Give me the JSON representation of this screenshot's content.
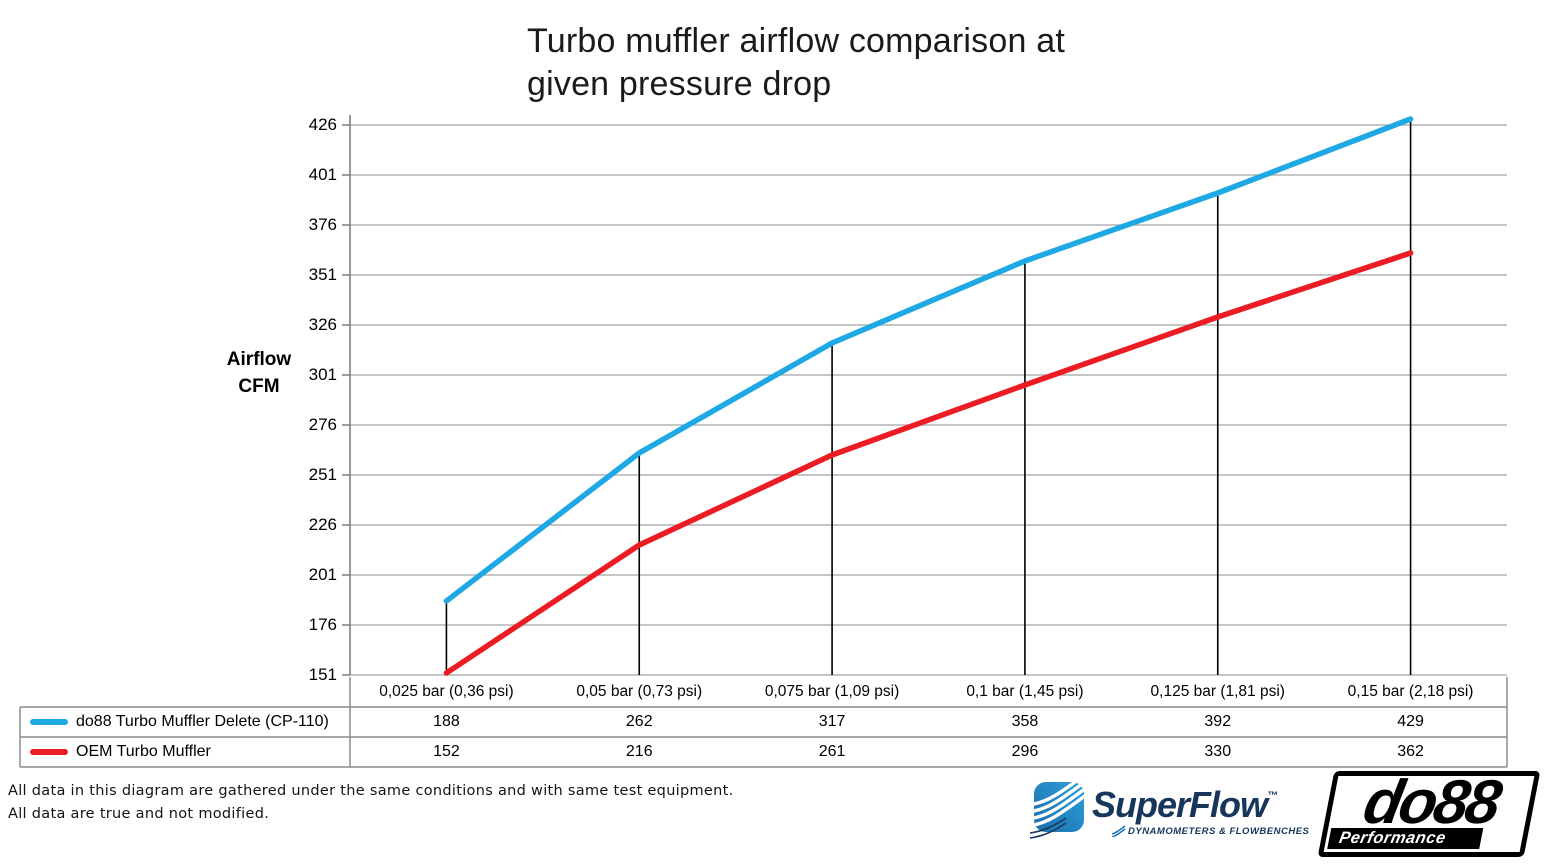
{
  "title": "Turbo muffler airflow comparison at\ngiven pressure drop",
  "y_axis": {
    "unit_label": "Airflow\nCFM",
    "ticks": [
      426,
      401,
      376,
      351,
      326,
      301,
      276,
      251,
      226,
      201,
      176,
      151
    ]
  },
  "chart_data": {
    "type": "line",
    "title": "Turbo muffler airflow comparison at given pressure drop",
    "xlabel": "",
    "ylabel": "Airflow CFM",
    "categories": [
      "0,025 bar (0,36 psi)",
      "0,05 bar (0,73 psi)",
      "0,075 bar (1,09 psi)",
      "0,1 bar (1,45 psi)",
      "0,125 bar (1,81 psi)",
      "0,15 bar (2,18 psi)"
    ],
    "series": [
      {
        "name": "do88 Turbo Muffler Delete (CP-110)",
        "color": "#1ea8e4",
        "values": [
          188,
          262,
          317,
          358,
          392,
          429
        ]
      },
      {
        "name": "OEM Turbo Muffler",
        "color": "#ec1c24",
        "values": [
          152,
          216,
          261,
          296,
          330,
          362
        ]
      }
    ],
    "ylim": [
      151,
      426
    ],
    "y_tick_step": 25,
    "grid": true,
    "marker_drop_lines": true,
    "legend_position": "table-bottom-left"
  },
  "footer": {
    "line1": "All data in this diagram are gathered under the same conditions and with same test equipment.",
    "line2": "All data are true and not modified."
  },
  "logos": {
    "superflow": {
      "name": "SuperFlow",
      "tm": "™",
      "tagline": "DYNAMOMETERS & FLOWBENCHES"
    },
    "do88": {
      "name": "do88",
      "tagline": "Performance"
    }
  },
  "colors": {
    "series_do88": "#1ea8e4",
    "series_oem": "#ec1c24",
    "gridline": "#a3a3a3",
    "axis": "#7f7f7f",
    "drop_line": "#000000",
    "table_border": "#8c8c8c",
    "superflow_navy": "#16365c",
    "superflow_blue": "#1b75bc",
    "title_text": "#1a1a1a"
  }
}
